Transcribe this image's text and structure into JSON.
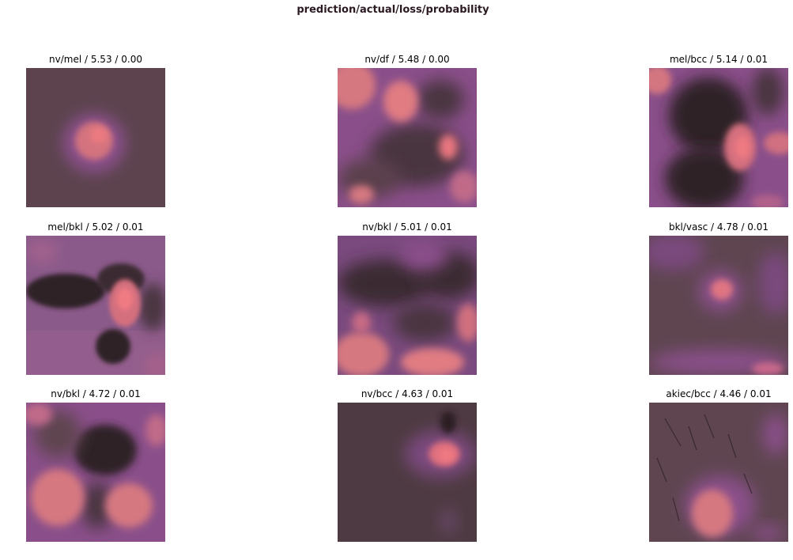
{
  "suptitle": "prediction/actual/loss/probability",
  "colors": {
    "dark": "#3d2a31",
    "base": "#5f4450",
    "purple": "#8c4f8c",
    "pink": "#e07b82",
    "hot": "#f07872"
  },
  "panels": [
    {
      "title": "nv/mel / 5.53 / 0.00"
    },
    {
      "title": "nv/df / 5.48 / 0.00"
    },
    {
      "title": "mel/bcc / 5.14 / 0.01"
    },
    {
      "title": "mel/bkl / 5.02 / 0.01"
    },
    {
      "title": "nv/bkl / 5.01 / 0.01"
    },
    {
      "title": "bkl/vasc / 4.78 / 0.01"
    },
    {
      "title": "nv/bkl / 4.72 / 0.01"
    },
    {
      "title": "nv/bcc / 4.63 / 0.01"
    },
    {
      "title": "akiec/bcc / 4.46 / 0.01"
    }
  ]
}
